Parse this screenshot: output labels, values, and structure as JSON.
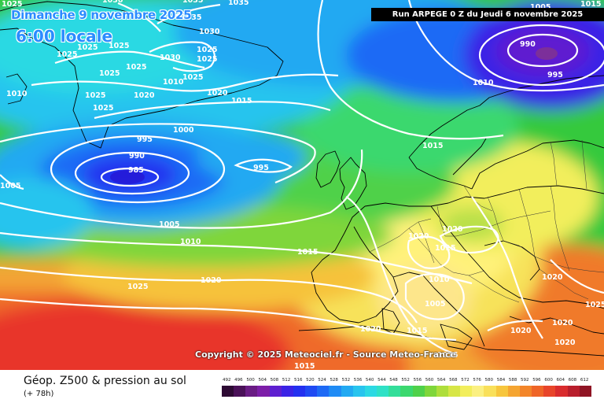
{
  "header": {
    "date_line": "Dimanche 9 novembre 2025",
    "time_line": "6:00 locale",
    "run_label": "Run ARPEGE 0 Z du Jeudi 6 novembre 2025"
  },
  "footer": {
    "title": "Géop. Z500 & pression au sol",
    "subtitle": "(+ 78h)",
    "copyright": "Copyright © 2025 Meteociel.fr - Source Meteo-France"
  },
  "colors": {
    "low_center": "#2419d6",
    "mid_green": "#34c93d",
    "high_yellow": "#fff27a",
    "high_red": "#e8352c"
  },
  "scale": {
    "values": [
      "492",
      "496",
      "500",
      "504",
      "508",
      "512",
      "516",
      "520",
      "524",
      "528",
      "532",
      "536",
      "540",
      "544",
      "548",
      "552",
      "556",
      "560",
      "564",
      "568",
      "572",
      "576",
      "580",
      "584",
      "588",
      "592",
      "596",
      "600",
      "604",
      "608",
      "612"
    ],
    "colors": [
      "#2d0a33",
      "#4a1158",
      "#6a1c84",
      "#7d1ea8",
      "#5e1fd0",
      "#3b23e6",
      "#2330f0",
      "#1f4af3",
      "#1e6af5",
      "#1f8bf5",
      "#22a9f2",
      "#28c4ee",
      "#2cd9e3",
      "#2fe1c6",
      "#33de9a",
      "#3bd86e",
      "#4fd14a",
      "#7fd63a",
      "#aede3b",
      "#d7e646",
      "#f2ee5c",
      "#fbf081",
      "#f9e05a",
      "#f7c63d",
      "#f5a531",
      "#f38529",
      "#ef6527",
      "#e8452a",
      "#d92c2e",
      "#b91e2c",
      "#8f1424"
    ]
  },
  "isobars": {
    "labels": [
      "1025",
      "1030",
      "1035",
      "1035",
      "1035",
      "1030",
      "1025",
      "1025",
      "1025",
      "1025",
      "1025",
      "1030",
      "1025",
      "1010",
      "1010",
      "1025",
      "1025",
      "1020",
      "1025",
      "1025",
      "1020",
      "1015",
      "1000",
      "995",
      "990",
      "985",
      "995",
      "1005",
      "1005",
      "1010",
      "1015",
      "1020",
      "1025",
      "1015",
      "1020",
      "1020",
      "1015",
      "1010",
      "1005",
      "1015",
      "1020",
      "1015",
      "1015",
      "1020",
      "1020",
      "1020",
      "1020",
      "1015",
      "1025",
      "990",
      "1010",
      "995",
      "1005"
    ]
  }
}
